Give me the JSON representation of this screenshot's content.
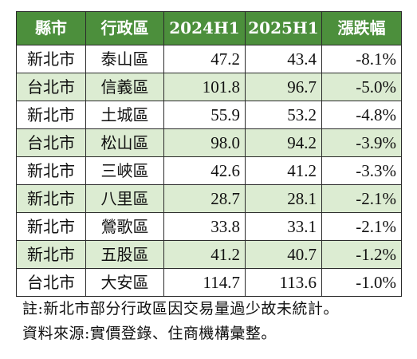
{
  "table": {
    "headers": [
      "縣市",
      "行政區",
      "2024H1",
      "2025H1",
      "漲跌幅"
    ],
    "rows": [
      {
        "city": "新北市",
        "district": "泰山區",
        "h1_2024": "47.2",
        "h1_2025": "43.4",
        "change": "-8.1%",
        "shaded": false
      },
      {
        "city": "台北市",
        "district": "信義區",
        "h1_2024": "101.8",
        "h1_2025": "96.7",
        "change": "-5.0%",
        "shaded": true
      },
      {
        "city": "新北市",
        "district": "土城區",
        "h1_2024": "55.9",
        "h1_2025": "53.2",
        "change": "-4.8%",
        "shaded": false
      },
      {
        "city": "台北市",
        "district": "松山區",
        "h1_2024": "98.0",
        "h1_2025": "94.2",
        "change": "-3.9%",
        "shaded": true
      },
      {
        "city": "新北市",
        "district": "三峽區",
        "h1_2024": "42.6",
        "h1_2025": "41.2",
        "change": "-3.3%",
        "shaded": false
      },
      {
        "city": "新北市",
        "district": "八里區",
        "h1_2024": "28.7",
        "h1_2025": "28.1",
        "change": "-2.1%",
        "shaded": true
      },
      {
        "city": "新北市",
        "district": "鶯歌區",
        "h1_2024": "33.8",
        "h1_2025": "33.1",
        "change": "-2.1%",
        "shaded": false
      },
      {
        "city": "新北市",
        "district": "五股區",
        "h1_2024": "41.2",
        "h1_2025": "40.7",
        "change": "-1.2%",
        "shaded": true
      },
      {
        "city": "台北市",
        "district": "大安區",
        "h1_2024": "114.7",
        "h1_2025": "113.6",
        "change": "-1.0%",
        "shaded": false
      }
    ],
    "colors": {
      "header_bg": "#4c8f3c",
      "header_text": "#ffffff",
      "shade_bg": "#dcecd2",
      "border": "#2b2b2b"
    }
  },
  "notes": {
    "note": "註:新北市部分行政區因交易量過少故未統計。",
    "source": "資料來源:實價登錄、住商機構彙整。"
  }
}
